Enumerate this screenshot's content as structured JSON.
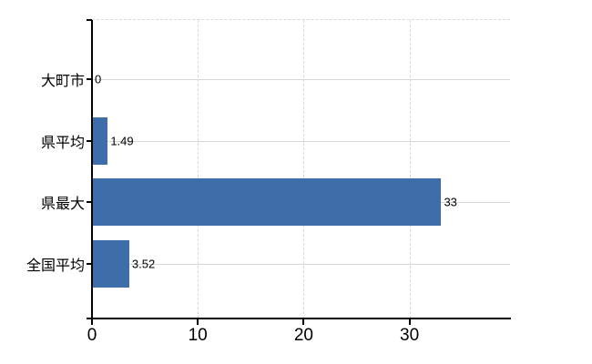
{
  "chart_data": {
    "type": "bar",
    "orientation": "horizontal",
    "title": "",
    "xlabel": "",
    "ylabel": "",
    "categories": [
      "大町市",
      "県平均",
      "県最大",
      "全国平均"
    ],
    "values": [
      0,
      1.49,
      33,
      3.52
    ],
    "value_labels": [
      "0",
      "1.49",
      "33",
      "3.52"
    ],
    "x_ticks": [
      0,
      10,
      20,
      30
    ],
    "x_tick_labels": [
      "0",
      "10",
      "20",
      "30"
    ],
    "xlim": [
      0,
      39.5
    ],
    "grid": true,
    "legend": false,
    "colors": {
      "bar": "#3e6ea9",
      "axis": "#000000",
      "horizontal_gridline": "#d5d9d0",
      "vertical_gridline": "#d9d9d9",
      "text": "#000000",
      "background": "#ffffff"
    }
  }
}
